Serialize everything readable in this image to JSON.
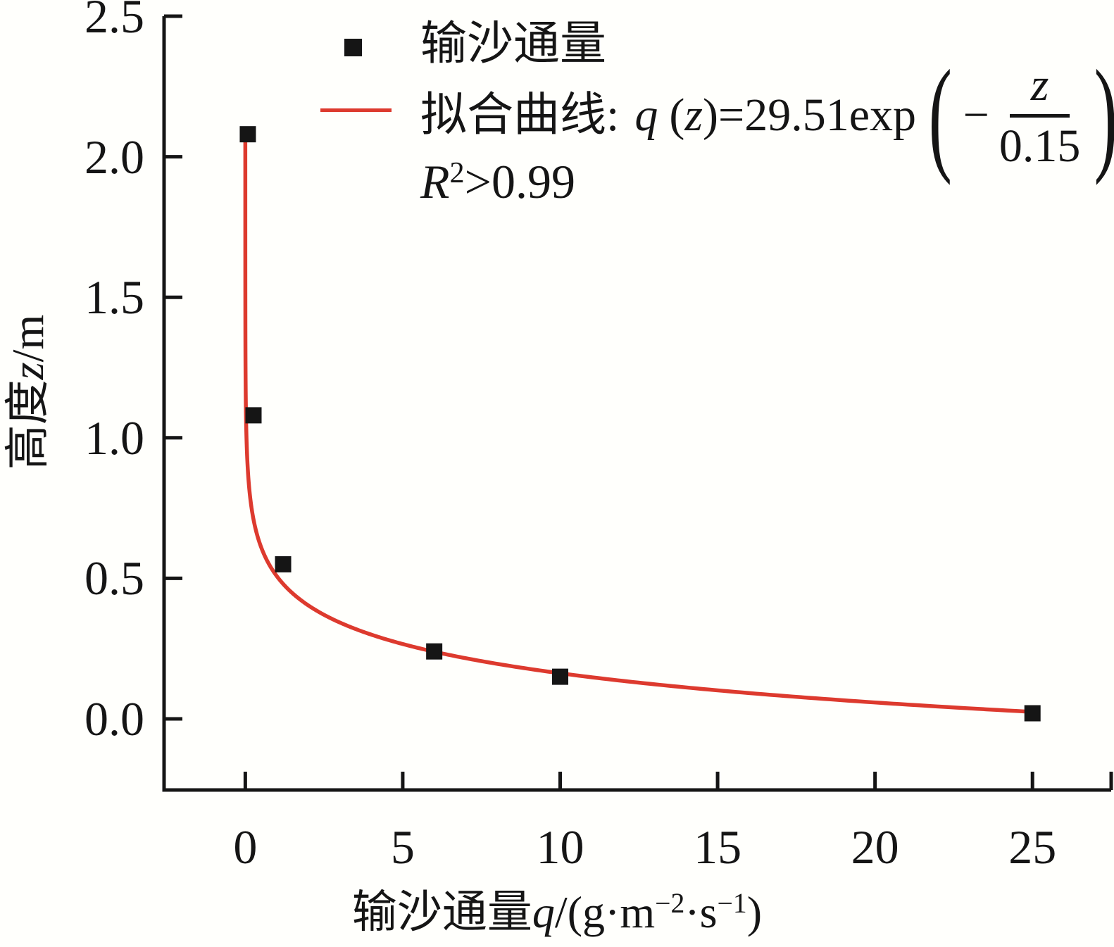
{
  "page": {
    "background": "#fffffc",
    "ink_color": "#151515"
  },
  "chart_data": {
    "type": "scatter",
    "title": "",
    "xlabel": "输沙通量q/(g·m−2·s−1)",
    "ylabel": "高度z/m",
    "xlabel_parts": {
      "cjk": "输沙通量",
      "var": "q",
      "u1": "/(g·m",
      "sup1": "−2",
      "u2": "·s",
      "sup2": "−1",
      "u3": ")"
    },
    "ylabel_parts": {
      "cjk": "高度",
      "var": "z",
      "unit": "/m"
    },
    "xlim": [
      -2.58,
      27.5
    ],
    "ylim": [
      -0.253,
      2.5
    ],
    "grid": false,
    "legend_position": "top-center-inside",
    "x_ticks": {
      "values": [
        0,
        5,
        10,
        15,
        20,
        25
      ],
      "labels": [
        "0",
        "5",
        "10",
        "15",
        "20",
        "25"
      ],
      "end_tick_value": 27.5
    },
    "y_ticks": {
      "values": [
        0,
        0.5,
        1.0,
        1.5,
        2.0,
        2.5
      ],
      "labels": [
        "0.0",
        "0.5",
        "1.0",
        "1.5",
        "2.0",
        "2.5"
      ]
    },
    "series": [
      {
        "name": "输沙通量",
        "type": "scatter",
        "marker": "square",
        "color": "#151515",
        "marker_size_px": 23,
        "points": [
          {
            "q": 0.08,
            "z": 2.08
          },
          {
            "q": 0.26,
            "z": 1.08
          },
          {
            "q": 1.2,
            "z": 0.55
          },
          {
            "q": 6.0,
            "z": 0.24
          },
          {
            "q": 10.0,
            "z": 0.15
          },
          {
            "q": 25.0,
            "z": 0.02
          }
        ]
      },
      {
        "name": "拟合曲线",
        "type": "line",
        "color": "#dd3a2e",
        "equation": "q(z)=29.51exp(−z/0.15)",
        "r_squared": "R2>0.99",
        "fit": {
          "A": 29.51,
          "b": 0.15,
          "z_start": 2.09,
          "z_end": 0.0236
        }
      }
    ],
    "legend": {
      "series1_label": "输沙通量",
      "formula": {
        "prefix": "拟合曲线",
        "colon": ":",
        "q": "q",
        "open": "(",
        "z": "z",
        "eq": ")=",
        "coef": "29.51exp",
        "paren_open": "(",
        "minus": "−",
        "frac_num": "z",
        "frac_den": "0.15",
        "paren_close": ")"
      },
      "r2": {
        "r": "R",
        "sup": "2",
        "rest": ">0.99"
      }
    }
  }
}
